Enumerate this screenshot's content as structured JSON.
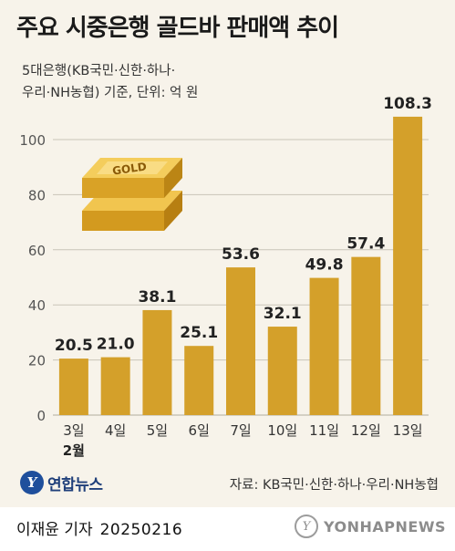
{
  "title": "주요 시중은행 골드바 판매액 추이",
  "subtitle_line1": "5대은행(KB국민·신한·하나·",
  "subtitle_line2": "우리·NH농협) 기준, 단위: 억 원",
  "chart_data": {
    "type": "bar",
    "categories": [
      "3일",
      "4일",
      "5일",
      "6일",
      "7일",
      "10일",
      "11일",
      "12일",
      "13일"
    ],
    "category_sublabels": [
      "2월",
      "",
      "",
      "",
      "",
      "",
      "",
      "",
      ""
    ],
    "values": [
      20.5,
      21.0,
      38.1,
      25.1,
      53.6,
      32.1,
      49.8,
      57.4,
      108.3
    ],
    "value_labels": [
      "20.5",
      "21.0",
      "38.1",
      "25.1",
      "53.6",
      "32.1",
      "49.8",
      "57.4",
      "108.3"
    ],
    "ylim": [
      0,
      110
    ],
    "yticks": [
      0,
      20,
      40,
      60,
      80,
      100
    ],
    "ytick_labels": [
      "0",
      "20",
      "40",
      "60",
      "80",
      "100"
    ],
    "bar_color": "#d4a02a",
    "grid": true,
    "gridline_color": "#c9c4b8"
  },
  "illustration": {
    "icon": "gold-bar-icon",
    "label": "GOLD",
    "color": "#e0a826"
  },
  "source_logo": {
    "icon": "yonhap-logo-icon",
    "mark": "Y",
    "name": "연합뉴스"
  },
  "source_text": "자료: KB국민·신한·하나·우리·NH농협",
  "byline": {
    "reporter": "이재윤 기자",
    "date": "20250216"
  },
  "watermark": {
    "mark": "Y",
    "text": "YONHAPNEWS",
    "color": "#8c8c8c"
  }
}
